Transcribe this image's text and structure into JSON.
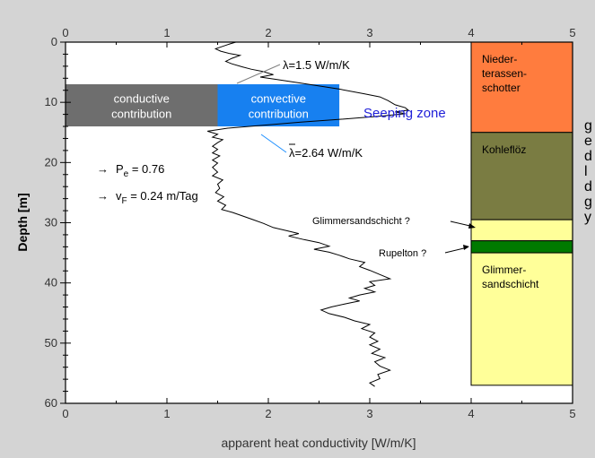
{
  "chart_data": {
    "type": "line",
    "xlabel": "apparent heat conductivity [W/m/K]",
    "ylabel": "Depth [m]",
    "xlim": [
      0,
      5
    ],
    "ylim": [
      60,
      0
    ],
    "x_ticks": [
      "0",
      "1",
      "2",
      "3",
      "4",
      "5"
    ],
    "y_ticks": [
      "0",
      "10",
      "20",
      "30",
      "40",
      "50",
      "60"
    ],
    "grid": false,
    "series": [
      {
        "color": "#000000",
        "points": [
          [
            1.68,
            0.0
          ],
          [
            1.62,
            0.3
          ],
          [
            1.55,
            0.7
          ],
          [
            1.48,
            1.1
          ],
          [
            1.53,
            1.5
          ],
          [
            1.62,
            1.9
          ],
          [
            1.72,
            2.2
          ],
          [
            1.64,
            2.7
          ],
          [
            1.58,
            3.2
          ],
          [
            1.64,
            3.6
          ],
          [
            1.74,
            4.1
          ],
          [
            1.83,
            4.5
          ],
          [
            1.95,
            4.9
          ],
          [
            2.05,
            5.4
          ],
          [
            1.92,
            5.8
          ],
          [
            2.08,
            6.2
          ],
          [
            2.35,
            6.9
          ],
          [
            2.7,
            7.8
          ],
          [
            2.95,
            8.6
          ],
          [
            3.1,
            9.1
          ],
          [
            3.18,
            9.7
          ],
          [
            3.25,
            10.4
          ],
          [
            3.35,
            10.9
          ],
          [
            3.38,
            11.3
          ],
          [
            3.25,
            11.6
          ],
          [
            3.35,
            11.9
          ],
          [
            3.1,
            12.3
          ],
          [
            2.72,
            12.8
          ],
          [
            2.32,
            13.3
          ],
          [
            1.95,
            13.8
          ],
          [
            1.6,
            14.3
          ],
          [
            1.4,
            14.8
          ],
          [
            1.5,
            15.3
          ],
          [
            1.45,
            15.8
          ],
          [
            1.55,
            16.2
          ],
          [
            1.5,
            16.7
          ],
          [
            1.45,
            17.3
          ],
          [
            1.5,
            17.8
          ],
          [
            1.45,
            18.4
          ],
          [
            1.52,
            18.9
          ],
          [
            1.45,
            19.6
          ],
          [
            1.5,
            20.1
          ],
          [
            1.45,
            20.8
          ],
          [
            1.5,
            21.6
          ],
          [
            1.45,
            22.2
          ],
          [
            1.55,
            22.9
          ],
          [
            1.5,
            23.6
          ],
          [
            1.52,
            24.3
          ],
          [
            1.48,
            25.0
          ],
          [
            1.56,
            25.7
          ],
          [
            1.5,
            26.4
          ],
          [
            1.58,
            27.1
          ],
          [
            1.54,
            27.8
          ],
          [
            1.65,
            28.3
          ],
          [
            1.75,
            28.9
          ],
          [
            1.85,
            29.5
          ],
          [
            1.95,
            30.1
          ],
          [
            2.05,
            30.8
          ],
          [
            2.2,
            31.4
          ],
          [
            2.3,
            31.8
          ],
          [
            2.2,
            32.2
          ],
          [
            2.35,
            32.8
          ],
          [
            2.5,
            33.3
          ],
          [
            2.6,
            33.9
          ],
          [
            2.45,
            34.4
          ],
          [
            2.6,
            34.9
          ],
          [
            2.7,
            35.4
          ],
          [
            2.8,
            36.0
          ],
          [
            2.95,
            36.6
          ],
          [
            2.9,
            37.3
          ],
          [
            3.0,
            37.9
          ],
          [
            3.1,
            38.6
          ],
          [
            3.2,
            39.3
          ],
          [
            3.0,
            39.8
          ],
          [
            3.05,
            40.4
          ],
          [
            2.95,
            40.9
          ],
          [
            3.05,
            41.5
          ],
          [
            2.9,
            42.0
          ],
          [
            2.8,
            42.5
          ],
          [
            2.9,
            43.0
          ],
          [
            2.75,
            43.5
          ],
          [
            2.62,
            44.0
          ],
          [
            2.52,
            44.5
          ],
          [
            2.6,
            45.1
          ],
          [
            2.75,
            45.7
          ],
          [
            2.85,
            46.3
          ],
          [
            3.0,
            46.9
          ],
          [
            2.92,
            47.6
          ],
          [
            3.05,
            48.3
          ],
          [
            3.0,
            49.0
          ],
          [
            3.08,
            49.7
          ],
          [
            3.0,
            50.3
          ],
          [
            3.1,
            51.0
          ],
          [
            3.02,
            51.7
          ],
          [
            3.15,
            52.4
          ],
          [
            3.05,
            53.1
          ],
          [
            3.1,
            53.8
          ],
          [
            3.2,
            54.5
          ],
          [
            3.08,
            55.2
          ],
          [
            3.1,
            55.9
          ],
          [
            3.0,
            56.6
          ],
          [
            3.05,
            57.2
          ]
        ]
      }
    ],
    "regions": [
      {
        "label_lines": [
          "conductive",
          "contribution"
        ],
        "x": [
          0,
          1.5
        ],
        "y": [
          7,
          14
        ],
        "color": "#6e6e6e"
      },
      {
        "label_lines": [
          "convective",
          "contribution"
        ],
        "x": [
          1.5,
          2.7
        ],
        "y": [
          7,
          14
        ],
        "color": "#1780f0"
      }
    ],
    "column": {
      "x": [
        4,
        5
      ],
      "layers": [
        {
          "top": 0,
          "bottom": 15,
          "color": "#ff7c3e",
          "label_lines": [
            "Nieder-",
            "terassen-",
            "schotter"
          ]
        },
        {
          "top": 15,
          "bottom": 29.5,
          "color": "#7a7c42",
          "label_lines": [
            "Kohleflöz"
          ]
        },
        {
          "top": 29.5,
          "bottom": 33,
          "color": "#ffff99",
          "label_lines": []
        },
        {
          "top": 33,
          "bottom": 35,
          "color": "#007a00",
          "label_lines": []
        },
        {
          "top": 35,
          "bottom": 57,
          "color": "#ffff99",
          "label_lines": [
            "Glimmer-",
            "sandschicht"
          ]
        }
      ]
    },
    "annotations": {
      "lambda1": "λ=1.5 W/m/K",
      "lambda2_symbol": "λ",
      "lambda2_rest": "=2.64 W/m/K",
      "seeping_zone": "Seeping zone",
      "glimmer_label": "Glimmersandschicht ?",
      "rupelton_label": "Rupelton ?",
      "peclet_arrow": "→",
      "peclet_main": "P",
      "peclet_sub": "e",
      "peclet_value": " = 0.76",
      "vf_arrow": "→",
      "vf_main": "v",
      "vf_sub": "F",
      "vf_value": " = 0.24 m/Tag"
    }
  },
  "side_text": [
    "g",
    "e",
    "d",
    "l",
    "d",
    "g",
    "y"
  ]
}
